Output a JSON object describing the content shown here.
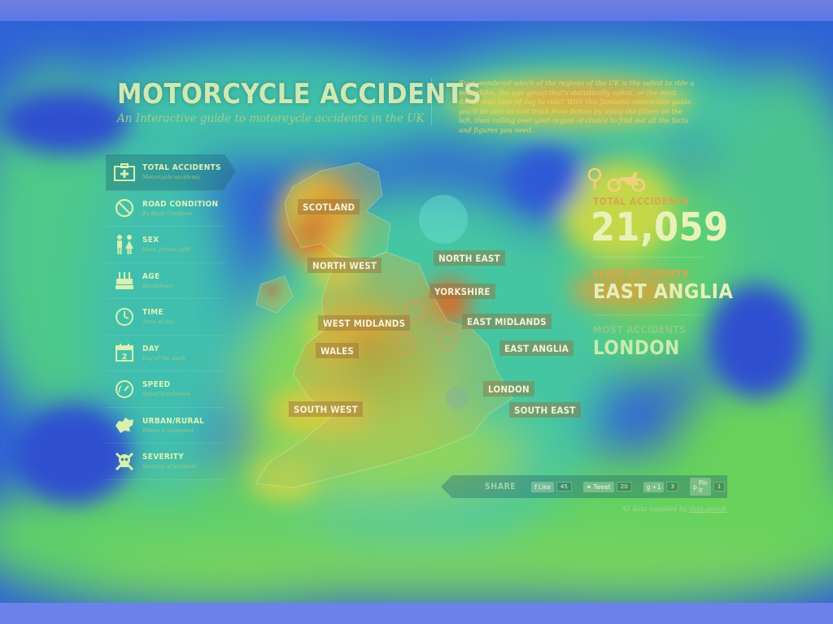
{
  "header": {
    "title": "MOTORCYCLE ACCIDENTS",
    "subtitle": "An Interactive guide to motoreycle accidents in the UK",
    "intro": "Ever wondered which of the regions of the UK is the safest to ride a motorbike, the age group that's statistically safest, or the most dangerous time of day to ride? With this fantastic interactive guide, you'll be able to sort truth from fiction by using the filters on the left, then rolling over your region of choice to find out all the facts and figures you need."
  },
  "menu": [
    {
      "label": "TOTAL ACCIDENTS",
      "sub": "Motorcycle accidents",
      "icon": "first-aid-kit-icon",
      "active": true
    },
    {
      "label": "ROAD CONDITION",
      "sub": "By Road Condition",
      "icon": "no-entry-icon",
      "active": false
    },
    {
      "label": "SEX",
      "sub": "Male, female split",
      "icon": "male-female-icon",
      "active": false
    },
    {
      "label": "AGE",
      "sub": "Breakdown",
      "icon": "birthday-cake-icon",
      "active": false
    },
    {
      "label": "TIME",
      "sub": "Time of day",
      "icon": "clock-icon",
      "active": false
    },
    {
      "label": "DAY",
      "sub": "Day of the week",
      "icon": "calendar-icon",
      "active": false
    },
    {
      "label": "SPEED",
      "sub": "Speed breakdown",
      "icon": "speedometer-icon",
      "active": false
    },
    {
      "label": "URBAN/RURAL",
      "sub": "Where it happened",
      "icon": "map-shape-icon",
      "active": false
    },
    {
      "label": "SEVERITY",
      "sub": "Severity of accident",
      "icon": "skull-crossbones-icon",
      "active": false
    }
  ],
  "calendar_icon_digit": "2",
  "map": {
    "regions": [
      "SCOTLAND",
      "NORTH WEST",
      "NORTH EAST",
      "YORKSHIRE",
      "WEST MIDLANDS",
      "EAST MIDLANDS",
      "WALES",
      "EAST ANGLIA",
      "LONDON",
      "SOUTH WEST",
      "SOUTH EAST"
    ]
  },
  "stats": {
    "total_label": "TOTAL ACCIDENTS",
    "total_value": "21,059",
    "least_label": "LEAST ACCIDENTS",
    "least_value": "EAST ANGLIA",
    "most_label": "MOST ACCIDENTS",
    "most_value": "LONDON",
    "icons": [
      "magnifier-icon",
      "motorcycle-icon"
    ]
  },
  "share": {
    "label": "SHARE",
    "buttons": [
      {
        "label": "Like",
        "count": "45",
        "icon": "facebook-icon"
      },
      {
        "label": "Tweet",
        "count": "20",
        "icon": "twitter-icon"
      },
      {
        "label": "+1",
        "count": "3",
        "icon": "google-plus-icon"
      },
      {
        "label": "Pin it",
        "count": "1",
        "icon": "pinterest-icon"
      }
    ]
  },
  "credit": {
    "prefix": "All data supplied by ",
    "link": "data.gov.uk"
  },
  "colors": {
    "heat_blue": "#2d5bd1",
    "heat_cyan": "#3ac4c4",
    "heat_green": "#6ed35a",
    "heat_yellow": "#e2d23c",
    "heat_red": "#d9411c"
  }
}
